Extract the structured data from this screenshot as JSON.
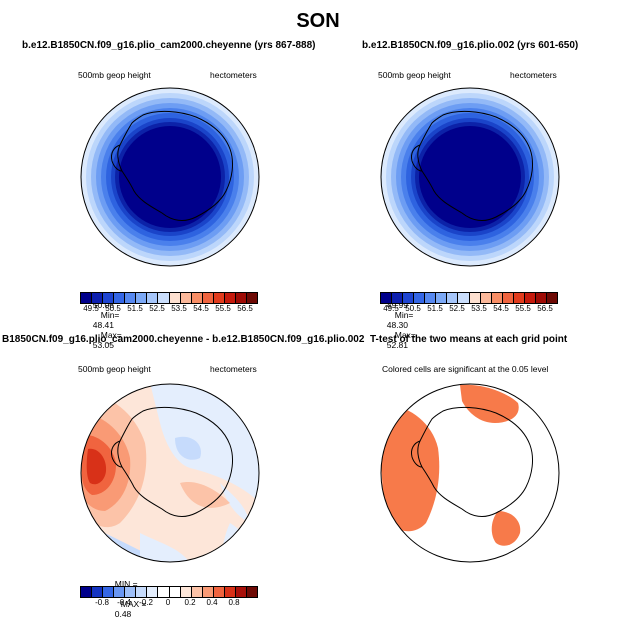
{
  "figure_title": "SON",
  "panels": [
    {
      "title": "b.e12.B1850CN.f09_g16.plio_cam2000.cheyenne (yrs 867-888)",
      "left_label": "500mb geop height",
      "right_label": "hectometers",
      "stats": {
        "mean_label": "MEAN=",
        "mean": "50.06",
        "min_label": "Min=",
        "min": "48.41",
        "max_label": "Max=",
        "max": "53.05"
      }
    },
    {
      "title": "b.e12.B1850CN.f09_g16.plio.002 (yrs 601-650)",
      "left_label": "500mb geop height",
      "right_label": "hectometers",
      "stats": {
        "mean_label": "MEAN=",
        "mean": "49.99",
        "min_label": "Min=",
        "min": "48.30",
        "max_label": "Max=",
        "max": "52.81"
      }
    },
    {
      "title": "B1850CN.f09_g16.plio_cam2000.cheyenne - b.e12.B1850CN.f09_g16.plio.002",
      "left_label": "500mb geop height",
      "right_label": "hectometers",
      "stats": {
        "min_label": "MIN =",
        "min": "-0.22",
        "max_label": "MAX =",
        "max": "0.48"
      }
    },
    {
      "title": "T-test of the two means at each grid point",
      "note": "Colored cells are significant at the 0.05 level"
    }
  ],
  "abs_colorbar": {
    "colors": [
      "#00008b",
      "#0d1fb0",
      "#1f45d2",
      "#3567e6",
      "#5688f0",
      "#7ca9f6",
      "#a6c6fa",
      "#cadefc",
      "#fde0d0",
      "#fbb89a",
      "#f88e66",
      "#f0643f",
      "#e23c1e",
      "#c51a0d",
      "#9e0b05",
      "#6e0a05"
    ],
    "labels": [
      "49.5",
      "50.5",
      "51.5",
      "52.5",
      "53.5",
      "54.5",
      "55.5",
      "56.5"
    ]
  },
  "diff_colorbar": {
    "colors": [
      "#00008b",
      "#1434c2",
      "#3567e6",
      "#6a97f2",
      "#9ebff8",
      "#c6dbfc",
      "#e4eefd",
      "#ffffff",
      "#ffffff",
      "#fde6d9",
      "#fcc3a8",
      "#f99a75",
      "#f0643f",
      "#d83118",
      "#a8100a",
      "#6e0a05"
    ],
    "labels": [
      "-0.8",
      "-0.4",
      "-0.2",
      "0",
      "0.2",
      "0.4",
      "0.8"
    ]
  }
}
